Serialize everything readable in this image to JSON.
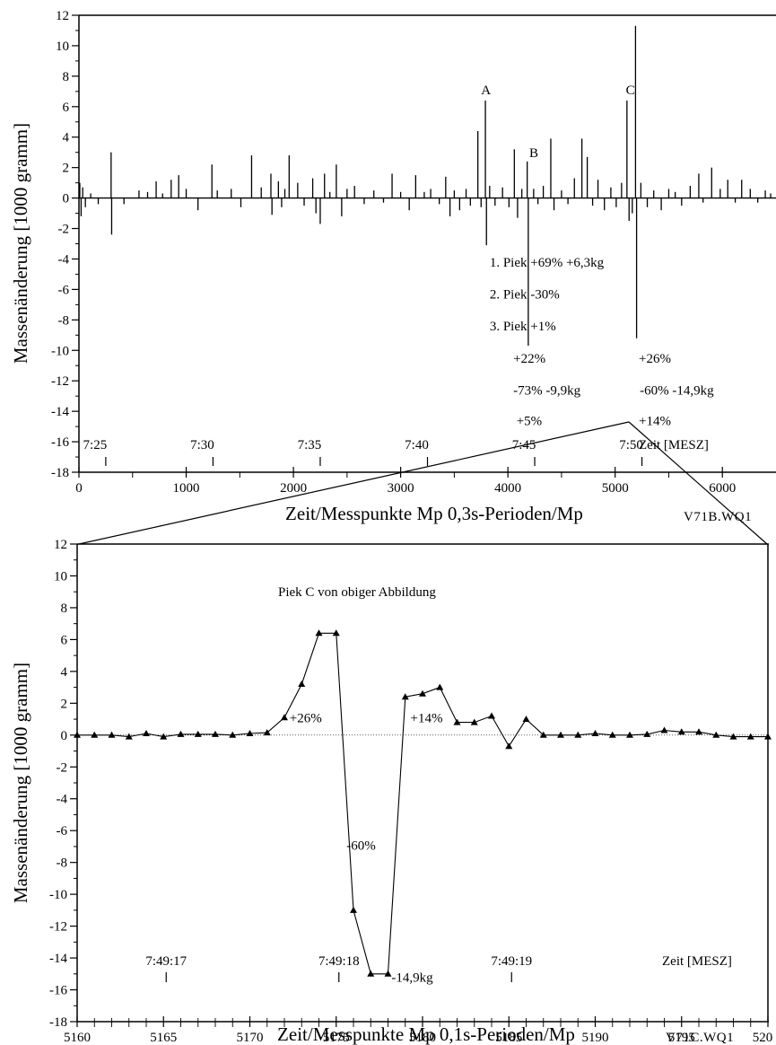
{
  "chart_data": [
    {
      "type": "line",
      "ylabel": "Massenänderung [1000 gramm]",
      "xlabel": "Zeit/Messpunkte Mp 0,3s-Perioden/Mp",
      "file_label": "V71B.WQ1",
      "xlim": [
        0,
        6500
      ],
      "ylim": [
        -18,
        12
      ],
      "xticks": [
        "0",
        "1000",
        "2000",
        "3000",
        "4000",
        "5000",
        "6000"
      ],
      "yticks": [
        "12",
        "10",
        "8",
        "6",
        "4",
        "2",
        "0",
        "-2",
        "-4",
        "-6",
        "-8",
        "-10",
        "-12",
        "-14",
        "-16",
        "-18"
      ],
      "time_axis_label": "Zeit [MESZ]",
      "time_labels": [
        {
          "label": "7:25",
          "x": 250
        },
        {
          "label": "7:30",
          "x": 1250
        },
        {
          "label": "7:35",
          "x": 2250
        },
        {
          "label": "7:40",
          "x": 3250
        },
        {
          "label": "7:45",
          "x": 4250
        },
        {
          "label": "7:50",
          "x": 5250
        }
      ],
      "spikes": [
        {
          "x": 8,
          "y": 1.0
        },
        {
          "x": 20,
          "y": -1.2
        },
        {
          "x": 35,
          "y": 0.7
        },
        {
          "x": 60,
          "y": -0.6
        },
        {
          "x": 110,
          "y": 0.3
        },
        {
          "x": 180,
          "y": -0.4
        },
        {
          "x": 300,
          "y": 3.0
        },
        {
          "x": 305,
          "y": -2.4
        },
        {
          "x": 420,
          "y": -0.4
        },
        {
          "x": 560,
          "y": 0.5
        },
        {
          "x": 640,
          "y": 0.4
        },
        {
          "x": 720,
          "y": 1.1
        },
        {
          "x": 780,
          "y": 0.3
        },
        {
          "x": 860,
          "y": 1.2
        },
        {
          "x": 930,
          "y": 1.5
        },
        {
          "x": 1000,
          "y": 0.6
        },
        {
          "x": 1110,
          "y": -0.8
        },
        {
          "x": 1240,
          "y": 2.2
        },
        {
          "x": 1290,
          "y": 0.5
        },
        {
          "x": 1420,
          "y": 0.6
        },
        {
          "x": 1510,
          "y": -0.6
        },
        {
          "x": 1610,
          "y": 2.8
        },
        {
          "x": 1700,
          "y": 0.7
        },
        {
          "x": 1790,
          "y": 1.6
        },
        {
          "x": 1800,
          "y": -1.1
        },
        {
          "x": 1860,
          "y": 1.1
        },
        {
          "x": 1890,
          "y": -0.6
        },
        {
          "x": 1920,
          "y": 0.6
        },
        {
          "x": 1960,
          "y": 2.8
        },
        {
          "x": 2040,
          "y": 1.0
        },
        {
          "x": 2100,
          "y": -0.5
        },
        {
          "x": 2180,
          "y": 1.3
        },
        {
          "x": 2210,
          "y": -1.0
        },
        {
          "x": 2250,
          "y": -1.7
        },
        {
          "x": 2290,
          "y": 1.6
        },
        {
          "x": 2340,
          "y": 0.4
        },
        {
          "x": 2400,
          "y": 2.2
        },
        {
          "x": 2450,
          "y": -1.2
        },
        {
          "x": 2500,
          "y": 0.6
        },
        {
          "x": 2570,
          "y": 0.8
        },
        {
          "x": 2660,
          "y": -0.4
        },
        {
          "x": 2750,
          "y": 0.5
        },
        {
          "x": 2840,
          "y": -0.3
        },
        {
          "x": 2920,
          "y": 1.6
        },
        {
          "x": 3000,
          "y": 0.4
        },
        {
          "x": 3080,
          "y": -0.8
        },
        {
          "x": 3140,
          "y": 1.5
        },
        {
          "x": 3220,
          "y": 0.4
        },
        {
          "x": 3280,
          "y": 0.6
        },
        {
          "x": 3360,
          "y": -0.4
        },
        {
          "x": 3420,
          "y": 1.4
        },
        {
          "x": 3460,
          "y": -1.2
        },
        {
          "x": 3500,
          "y": 0.5
        },
        {
          "x": 3550,
          "y": -0.8
        },
        {
          "x": 3610,
          "y": 0.6
        },
        {
          "x": 3650,
          "y": -0.5
        },
        {
          "x": 3720,
          "y": 4.4
        },
        {
          "x": 3750,
          "y": -0.6
        },
        {
          "x": 3790,
          "y": 6.4
        },
        {
          "x": 3800,
          "y": -3.1
        },
        {
          "x": 3830,
          "y": 0.8
        },
        {
          "x": 3880,
          "y": -0.5
        },
        {
          "x": 3950,
          "y": 0.7
        },
        {
          "x": 4010,
          "y": -0.6
        },
        {
          "x": 4060,
          "y": 3.2
        },
        {
          "x": 4090,
          "y": -1.3
        },
        {
          "x": 4130,
          "y": 0.6
        },
        {
          "x": 4180,
          "y": 2.4
        },
        {
          "x": 4190,
          "y": -9.7
        },
        {
          "x": 4240,
          "y": 0.6
        },
        {
          "x": 4280,
          "y": -0.4
        },
        {
          "x": 4330,
          "y": 0.8
        },
        {
          "x": 4400,
          "y": 3.9
        },
        {
          "x": 4430,
          "y": -0.8
        },
        {
          "x": 4500,
          "y": 0.5
        },
        {
          "x": 4560,
          "y": -0.4
        },
        {
          "x": 4620,
          "y": 1.3
        },
        {
          "x": 4690,
          "y": 3.9
        },
        {
          "x": 4740,
          "y": 2.7
        },
        {
          "x": 4790,
          "y": -0.5
        },
        {
          "x": 4840,
          "y": 1.2
        },
        {
          "x": 4900,
          "y": -0.8
        },
        {
          "x": 4960,
          "y": 0.7
        },
        {
          "x": 5010,
          "y": -0.6
        },
        {
          "x": 5060,
          "y": 1.0
        },
        {
          "x": 5110,
          "y": 6.4
        },
        {
          "x": 5130,
          "y": -1.5
        },
        {
          "x": 5160,
          "y": -1.0
        },
        {
          "x": 5190,
          "y": 11.3
        },
        {
          "x": 5200,
          "y": -9.2
        },
        {
          "x": 5240,
          "y": 1.0
        },
        {
          "x": 5300,
          "y": -0.6
        },
        {
          "x": 5360,
          "y": 0.5
        },
        {
          "x": 5430,
          "y": -0.8
        },
        {
          "x": 5500,
          "y": 0.6
        },
        {
          "x": 5560,
          "y": 0.4
        },
        {
          "x": 5620,
          "y": -0.5
        },
        {
          "x": 5700,
          "y": 0.8
        },
        {
          "x": 5780,
          "y": 1.6
        },
        {
          "x": 5820,
          "y": -0.3
        },
        {
          "x": 5900,
          "y": 2.0
        },
        {
          "x": 5980,
          "y": 0.6
        },
        {
          "x": 6050,
          "y": 1.2
        },
        {
          "x": 6120,
          "y": -0.3
        },
        {
          "x": 6180,
          "y": 1.2
        },
        {
          "x": 6260,
          "y": 0.6
        },
        {
          "x": 6330,
          "y": -0.3
        },
        {
          "x": 6400,
          "y": 0.5
        },
        {
          "x": 6450,
          "y": 0.3
        }
      ],
      "annotations": [
        {
          "text": "A",
          "x": 3750,
          "y": 6.8
        },
        {
          "text": "B",
          "x": 4200,
          "y": 2.7
        },
        {
          "text": "C",
          "x": 5100,
          "y": 6.8
        },
        {
          "text": "1. Piek +69% +6,3kg",
          "x": 3830,
          "y": -4.5
        },
        {
          "text": "2. Piek -30%",
          "x": 3830,
          "y": -6.6
        },
        {
          "text": "3. Piek +1%",
          "x": 3830,
          "y": -8.7
        },
        {
          "text": "+22%",
          "x": 4050,
          "y": -10.8
        },
        {
          "text": "-73% -9,9kg",
          "x": 4050,
          "y": -12.9
        },
        {
          "text": "+5%",
          "x": 4080,
          "y": -14.9
        },
        {
          "text": "+26%",
          "x": 5220,
          "y": -10.8
        },
        {
          "text": "-60% -14,9kg",
          "x": 5230,
          "y": -12.9
        },
        {
          "text": "+14%",
          "x": 5220,
          "y": -14.9
        }
      ]
    },
    {
      "type": "line",
      "title": "Piek C von obiger Abbildung",
      "ylabel": "Massenänderung [1000 gramm]",
      "xlabel": "Zeit/Messpunkte Mp 0,1s-Perioden/Mp",
      "file_label": "V71C.WQ1",
      "xlim": [
        5160,
        5200
      ],
      "ylim": [
        -18,
        12
      ],
      "xticks": [
        "5160",
        "5165",
        "5170",
        "5175",
        "5180",
        "5185",
        "5190",
        "5195",
        "520"
      ],
      "yticks": [
        "12",
        "10",
        "8",
        "6",
        "4",
        "2",
        "0",
        "-2",
        "-4",
        "-6",
        "-8",
        "-10",
        "-12",
        "-14",
        "-16",
        "-18"
      ],
      "time_axis_label": "Zeit [MESZ]",
      "time_labels": [
        {
          "label": "7:49:17",
          "x": 5165
        },
        {
          "label": "7:49:18",
          "x": 5175
        },
        {
          "label": "7:49:19",
          "x": 5185
        }
      ],
      "x": [
        5160,
        5161,
        5162,
        5163,
        5164,
        5165,
        5166,
        5167,
        5168,
        5169,
        5170,
        5171,
        5172,
        5173,
        5174,
        5175,
        5176,
        5177,
        5178,
        5179,
        5180,
        5181,
        5182,
        5183,
        5184,
        5185,
        5186,
        5187,
        5188,
        5189,
        5190,
        5191,
        5192,
        5193,
        5194,
        5195,
        5196,
        5197,
        5198,
        5199,
        5200
      ],
      "y": [
        0.0,
        0.0,
        0.0,
        -0.1,
        0.1,
        -0.1,
        0.05,
        0.05,
        0.05,
        0.0,
        0.1,
        0.15,
        1.1,
        3.2,
        6.4,
        6.4,
        -11.0,
        -15.0,
        -15.0,
        2.4,
        2.6,
        3.0,
        0.8,
        0.8,
        1.2,
        -0.7,
        1.0,
        0.0,
        0.0,
        0.0,
        0.1,
        0.0,
        0.0,
        0.05,
        0.3,
        0.2,
        0.2,
        0.0,
        -0.1,
        -0.1,
        -0.1
      ],
      "annotations": [
        {
          "text": "+26%",
          "x": 5172.3,
          "y": 0.8
        },
        {
          "text": "+14%",
          "x": 5179.3,
          "y": 0.8
        },
        {
          "text": "-60%",
          "x": 5175.6,
          "y": -7.2
        },
        {
          "text": "-14,9kg",
          "x": 5178.2,
          "y": -15.5
        }
      ]
    }
  ]
}
